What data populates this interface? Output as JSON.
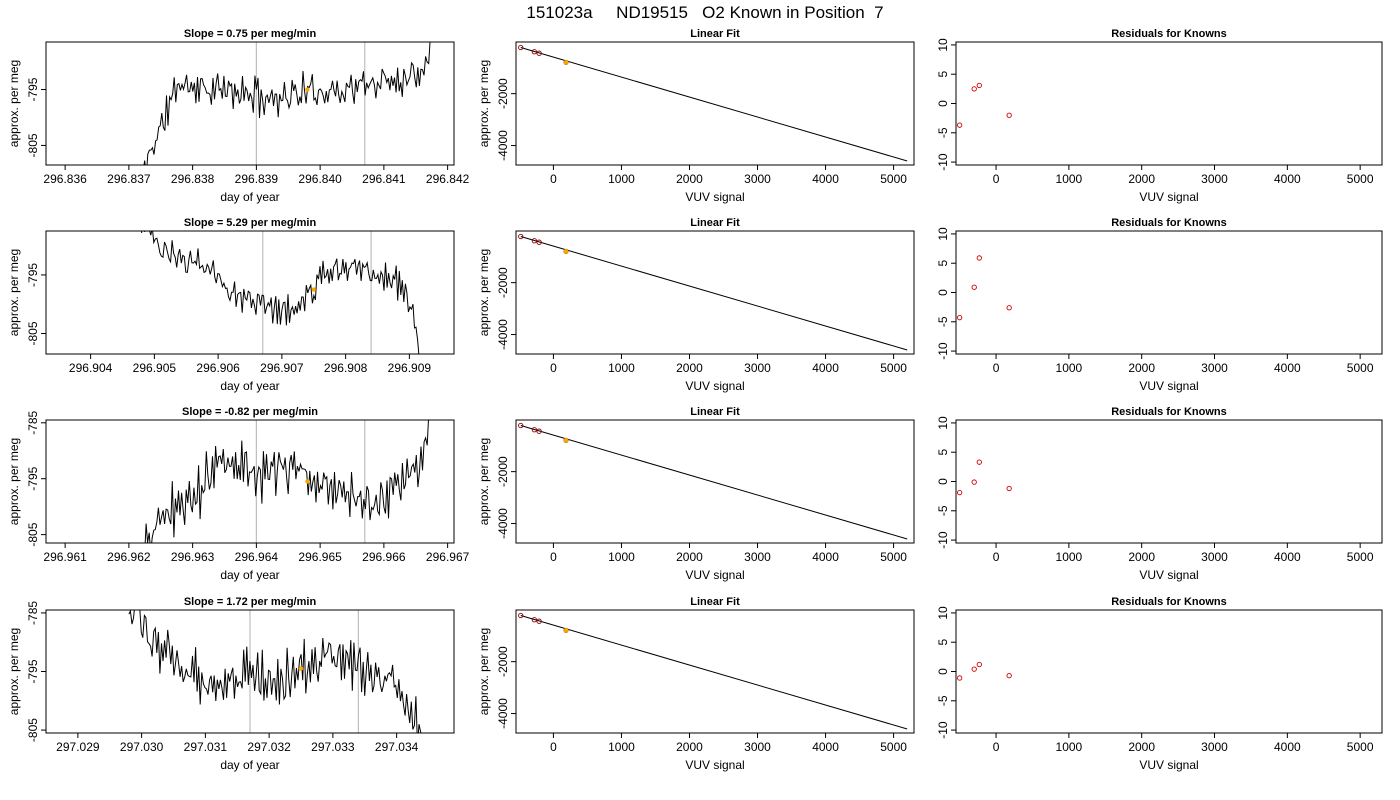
{
  "page_title": "151023a     ND19515   O2 Known in Position  7",
  "colors": {
    "line": "#000000",
    "highlight": "#FFA500",
    "residual_point": "#CD0000",
    "vline": "#BEBEBE",
    "fit_point": "#8B0000"
  },
  "chart_data": [
    {
      "type": "line",
      "row": 0,
      "col": 0,
      "title": "Slope =  0.75  per meg/min",
      "xlabel": "day of year",
      "ylabel": "approx. per meg",
      "xlim": [
        296.8357,
        296.8421
      ],
      "ylim": [
        -808.5,
        -786.5
      ],
      "xticks": [
        296.836,
        296.837,
        296.838,
        296.839,
        296.84,
        296.841,
        296.842
      ],
      "xtick_labels": [
        "296.836",
        "296.837",
        "296.838",
        "296.839",
        "296.840",
        "296.841",
        "296.842"
      ],
      "yticks": [
        -795,
        -805
      ],
      "ytick_labels": [
        "-795",
        "-805"
      ],
      "vlines": [
        296.839,
        296.8407
      ],
      "highlight": {
        "x": 296.8398,
        "y": -795
      },
      "trace": {
        "x_start": 296.8372,
        "x_end": 296.8418,
        "n": 190,
        "seed": 11,
        "anchors": [
          [
            0,
            -811
          ],
          [
            0.03,
            -806
          ],
          [
            0.08,
            -800
          ],
          [
            0.12,
            -794
          ],
          [
            0.25,
            -795
          ],
          [
            0.45,
            -796.5
          ],
          [
            0.55,
            -795.5
          ],
          [
            0.7,
            -795
          ],
          [
            0.82,
            -793.5
          ],
          [
            0.9,
            -793
          ],
          [
            0.96,
            -791
          ],
          [
            1.0,
            -783
          ]
        ],
        "amp": 3.2
      }
    },
    {
      "type": "scatter",
      "row": 0,
      "col": 1,
      "title": "Linear Fit",
      "xlabel": "VUV signal",
      "ylabel": "approx. per meg",
      "xlim": [
        -550,
        5300
      ],
      "ylim": [
        -4750,
        -10
      ],
      "xticks": [
        0,
        1000,
        2000,
        3000,
        4000,
        5000
      ],
      "xtick_labels": [
        "0",
        "1000",
        "2000",
        "3000",
        "4000",
        "5000"
      ],
      "yticks": [
        -2000,
        -4000
      ],
      "ytick_labels": [
        "-2000",
        "-4000"
      ],
      "points": [
        [
          -480,
          -222
        ],
        [
          -280,
          -387
        ],
        [
          -210,
          -442
        ]
      ],
      "unknown": {
        "x": 185,
        "y": -795
      },
      "fit_line": [
        [
          -480,
          -222
        ],
        [
          5200,
          -4596
        ]
      ]
    },
    {
      "type": "scatter",
      "row": 0,
      "col": 2,
      "title": "Residuals for Knowns",
      "xlabel": "VUV signal",
      "ylabel": "",
      "xlim": [
        -550,
        5300
      ],
      "ylim": [
        -10.5,
        10.5
      ],
      "xticks": [
        0,
        1000,
        2000,
        3000,
        4000,
        5000
      ],
      "xtick_labels": [
        "0",
        "1000",
        "2000",
        "3000",
        "4000",
        "5000"
      ],
      "yticks": [
        10,
        5,
        0,
        -5,
        -10
      ],
      "ytick_labels": [
        "10",
        "5",
        "0",
        "-5",
        "-10"
      ],
      "points": [
        [
          -500,
          -3.7
        ],
        [
          -300,
          2.5
        ],
        [
          -230,
          3.1
        ],
        [
          180,
          -2.0
        ]
      ]
    },
    {
      "type": "line",
      "row": 1,
      "col": 0,
      "title": "Slope =  5.29  per meg/min",
      "xlabel": "day of year",
      "ylabel": "approx. per meg",
      "xlim": [
        296.9033,
        296.9097
      ],
      "ylim": [
        -808.5,
        -787.5
      ],
      "xticks": [
        296.904,
        296.905,
        296.906,
        296.907,
        296.908,
        296.909
      ],
      "xtick_labels": [
        "296.904",
        "296.905",
        "296.906",
        "296.907",
        "296.908",
        "296.909"
      ],
      "yticks": [
        -795,
        -805
      ],
      "ytick_labels": [
        "-795",
        "-805"
      ],
      "vlines": [
        296.9067,
        296.9084
      ],
      "highlight": {
        "x": 296.9075,
        "y": -797.5
      },
      "trace": {
        "x_start": 296.9048,
        "x_end": 296.9092,
        "n": 185,
        "seed": 23,
        "anchors": [
          [
            0,
            -785
          ],
          [
            0.08,
            -792
          ],
          [
            0.2,
            -792.5
          ],
          [
            0.3,
            -797
          ],
          [
            0.45,
            -800.5
          ],
          [
            0.55,
            -801
          ],
          [
            0.65,
            -795
          ],
          [
            0.75,
            -793
          ],
          [
            0.85,
            -795
          ],
          [
            0.93,
            -797
          ],
          [
            0.97,
            -802
          ],
          [
            1.0,
            -812
          ]
        ],
        "amp": 2.8
      }
    },
    {
      "type": "scatter",
      "row": 1,
      "col": 1,
      "title": "Linear Fit",
      "xlabel": "VUV signal",
      "ylabel": "approx. per meg",
      "xlim": [
        -550,
        5300
      ],
      "ylim": [
        -4750,
        -10
      ],
      "xticks": [
        0,
        1000,
        2000,
        3000,
        4000,
        5000
      ],
      "xtick_labels": [
        "0",
        "1000",
        "2000",
        "3000",
        "4000",
        "5000"
      ],
      "yticks": [
        -2000,
        -4000
      ],
      "ytick_labels": [
        "-2000",
        "-4000"
      ],
      "points": [
        [
          -480,
          -222
        ],
        [
          -280,
          -387
        ],
        [
          -210,
          -442
        ]
      ],
      "unknown": {
        "x": 185,
        "y": -795
      },
      "fit_line": [
        [
          -480,
          -222
        ],
        [
          5200,
          -4596
        ]
      ]
    },
    {
      "type": "scatter",
      "row": 1,
      "col": 2,
      "title": "Residuals for Knowns",
      "xlabel": "VUV signal",
      "ylabel": "",
      "xlim": [
        -550,
        5300
      ],
      "ylim": [
        -10.5,
        10.5
      ],
      "xticks": [
        0,
        1000,
        2000,
        3000,
        4000,
        5000
      ],
      "xtick_labels": [
        "0",
        "1000",
        "2000",
        "3000",
        "4000",
        "5000"
      ],
      "yticks": [
        10,
        5,
        0,
        -5,
        -10
      ],
      "ytick_labels": [
        "10",
        "5",
        "0",
        "-5",
        "-10"
      ],
      "points": [
        [
          -500,
          -4.3
        ],
        [
          -300,
          0.9
        ],
        [
          -230,
          5.9
        ],
        [
          180,
          -2.6
        ]
      ]
    },
    {
      "type": "line",
      "row": 2,
      "col": 0,
      "title": "Slope =  -0.82  per meg/min",
      "xlabel": "day of year",
      "ylabel": "approx. per meg",
      "xlim": [
        296.9607,
        296.9671
      ],
      "ylim": [
        -806.5,
        -784.5
      ],
      "xticks": [
        296.961,
        296.962,
        296.963,
        296.964,
        296.965,
        296.966,
        296.967
      ],
      "xtick_labels": [
        "296.961",
        "296.962",
        "296.963",
        "296.964",
        "296.965",
        "296.966",
        "296.967"
      ],
      "yticks": [
        -785,
        -795,
        -805
      ],
      "ytick_labels": [
        "-785",
        "-795",
        "-805"
      ],
      "vlines": [
        296.964,
        296.9657
      ],
      "highlight": {
        "x": 296.9648,
        "y": -795.5
      },
      "trace": {
        "x_start": 296.9621,
        "x_end": 296.9668,
        "n": 195,
        "seed": 37,
        "anchors": [
          [
            0,
            -812
          ],
          [
            0.08,
            -802
          ],
          [
            0.18,
            -799
          ],
          [
            0.3,
            -790
          ],
          [
            0.4,
            -795
          ],
          [
            0.5,
            -793
          ],
          [
            0.6,
            -795
          ],
          [
            0.7,
            -797
          ],
          [
            0.8,
            -800
          ],
          [
            0.88,
            -797
          ],
          [
            0.95,
            -793
          ],
          [
            1.0,
            -780
          ]
        ],
        "amp": 4.2
      }
    },
    {
      "type": "scatter",
      "row": 2,
      "col": 1,
      "title": "Linear Fit",
      "xlabel": "VUV signal",
      "ylabel": "approx. per meg",
      "xlim": [
        -550,
        5300
      ],
      "ylim": [
        -4750,
        -10
      ],
      "xticks": [
        0,
        1000,
        2000,
        3000,
        4000,
        5000
      ],
      "xtick_labels": [
        "0",
        "1000",
        "2000",
        "3000",
        "4000",
        "5000"
      ],
      "yticks": [
        -2000,
        -4000
      ],
      "ytick_labels": [
        "-2000",
        "-4000"
      ],
      "points": [
        [
          -480,
          -222
        ],
        [
          -280,
          -387
        ],
        [
          -210,
          -442
        ]
      ],
      "unknown": {
        "x": 185,
        "y": -795
      },
      "fit_line": [
        [
          -480,
          -222
        ],
        [
          5200,
          -4596
        ]
      ]
    },
    {
      "type": "scatter",
      "row": 2,
      "col": 2,
      "title": "Residuals for Knowns",
      "xlabel": "VUV signal",
      "ylabel": "",
      "xlim": [
        -550,
        5300
      ],
      "ylim": [
        -10.5,
        10.5
      ],
      "xticks": [
        0,
        1000,
        2000,
        3000,
        4000,
        5000
      ],
      "xtick_labels": [
        "0",
        "1000",
        "2000",
        "3000",
        "4000",
        "5000"
      ],
      "yticks": [
        10,
        5,
        0,
        -5,
        -10
      ],
      "ytick_labels": [
        "10",
        "5",
        "0",
        "-5",
        "-10"
      ],
      "points": [
        [
          -500,
          -1.9
        ],
        [
          -300,
          -0.1
        ],
        [
          -230,
          3.3
        ],
        [
          180,
          -1.2
        ]
      ]
    },
    {
      "type": "line",
      "row": 3,
      "col": 0,
      "title": "Slope =  1.72  per meg/min",
      "xlabel": "day of year",
      "ylabel": "approx. per meg",
      "xlim": [
        297.0285,
        297.0349
      ],
      "ylim": [
        -805.5,
        -784.5
      ],
      "xticks": [
        297.029,
        297.03,
        297.031,
        297.032,
        297.033,
        297.034
      ],
      "xtick_labels": [
        "297.029",
        "297.030",
        "297.031",
        "297.032",
        "297.033",
        "297.034"
      ],
      "yticks": [
        -785,
        -795,
        -805
      ],
      "ytick_labels": [
        "-785",
        "-795",
        "-805"
      ],
      "vlines": [
        297.0317,
        297.0334
      ],
      "highlight": {
        "x": 297.0325,
        "y": -794.5
      },
      "trace": {
        "x_start": 297.0298,
        "x_end": 297.0344,
        "n": 190,
        "seed": 53,
        "anchors": [
          [
            0,
            -784
          ],
          [
            0.1,
            -791
          ],
          [
            0.2,
            -795
          ],
          [
            0.3,
            -797
          ],
          [
            0.4,
            -795
          ],
          [
            0.5,
            -797
          ],
          [
            0.6,
            -794
          ],
          [
            0.7,
            -792
          ],
          [
            0.8,
            -795
          ],
          [
            0.9,
            -797
          ],
          [
            1.0,
            -806
          ]
        ],
        "amp": 4.0
      }
    },
    {
      "type": "scatter",
      "row": 3,
      "col": 1,
      "title": "Linear Fit",
      "xlabel": "VUV signal",
      "ylabel": "approx. per meg",
      "xlim": [
        -550,
        5300
      ],
      "ylim": [
        -4750,
        -10
      ],
      "xticks": [
        0,
        1000,
        2000,
        3000,
        4000,
        5000
      ],
      "xtick_labels": [
        "0",
        "1000",
        "2000",
        "3000",
        "4000",
        "5000"
      ],
      "yticks": [
        -2000,
        -4000
      ],
      "ytick_labels": [
        "-2000",
        "-4000"
      ],
      "points": [
        [
          -480,
          -222
        ],
        [
          -280,
          -387
        ],
        [
          -210,
          -442
        ]
      ],
      "unknown": {
        "x": 185,
        "y": -795
      },
      "fit_line": [
        [
          -480,
          -222
        ],
        [
          5200,
          -4596
        ]
      ]
    },
    {
      "type": "scatter",
      "row": 3,
      "col": 2,
      "title": "Residuals for Knowns",
      "xlabel": "VUV signal",
      "ylabel": "",
      "xlim": [
        -550,
        5300
      ],
      "ylim": [
        -10.5,
        10.5
      ],
      "xticks": [
        0,
        1000,
        2000,
        3000,
        4000,
        5000
      ],
      "xtick_labels": [
        "0",
        "1000",
        "2000",
        "3000",
        "4000",
        "5000"
      ],
      "yticks": [
        10,
        5,
        0,
        -5,
        -10
      ],
      "ytick_labels": [
        "10",
        "5",
        "0",
        "-5",
        "-10"
      ],
      "points": [
        [
          -500,
          -1.1
        ],
        [
          -300,
          0.4
        ],
        [
          -230,
          1.2
        ],
        [
          180,
          -0.7
        ]
      ]
    }
  ]
}
